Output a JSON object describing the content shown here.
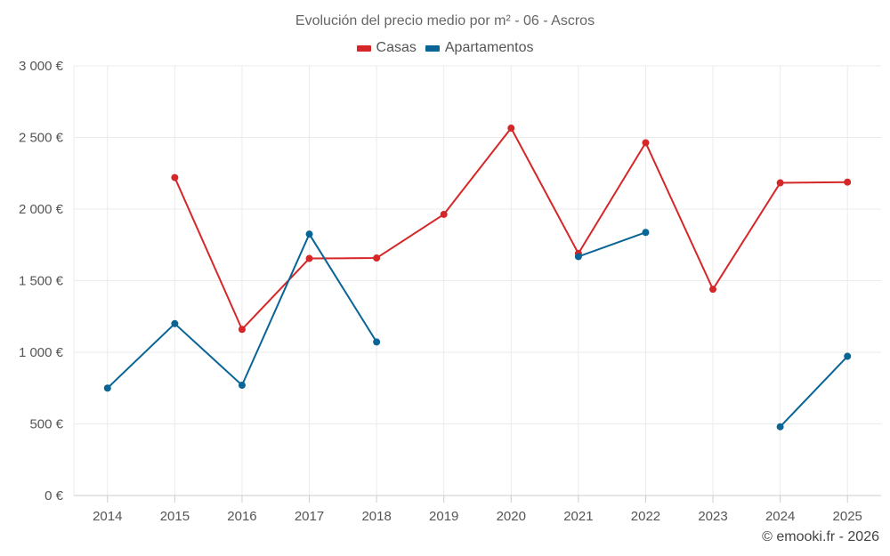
{
  "chart_data": {
    "type": "line",
    "title": "Evolución del precio medio por m² - 06 - Ascros",
    "categories": [
      "2014",
      "2015",
      "2016",
      "2017",
      "2018",
      "2019",
      "2020",
      "2021",
      "2022",
      "2023",
      "2024",
      "2025"
    ],
    "ylim": [
      0,
      3000
    ],
    "yticks": [
      0,
      500,
      1000,
      1500,
      2000,
      2500,
      3000
    ],
    "ytick_labels": [
      "0 €",
      "500 €",
      "1 000 €",
      "1 500 €",
      "2 000 €",
      "2 500 €",
      "3 000 €"
    ],
    "grid": true,
    "legend_position": "top-center",
    "series": [
      {
        "name": "Casas",
        "color": "#d62728",
        "values": [
          null,
          2220,
          1160,
          1655,
          1658,
          1963,
          2565,
          1690,
          2463,
          1440,
          2183,
          2188
        ]
      },
      {
        "name": "Apartamentos",
        "color": "#0a6597",
        "values": [
          750,
          1200,
          770,
          1825,
          1072,
          null,
          null,
          1668,
          1837,
          null,
          480,
          972
        ]
      }
    ]
  },
  "credit": "© emooki.fr - 2026"
}
